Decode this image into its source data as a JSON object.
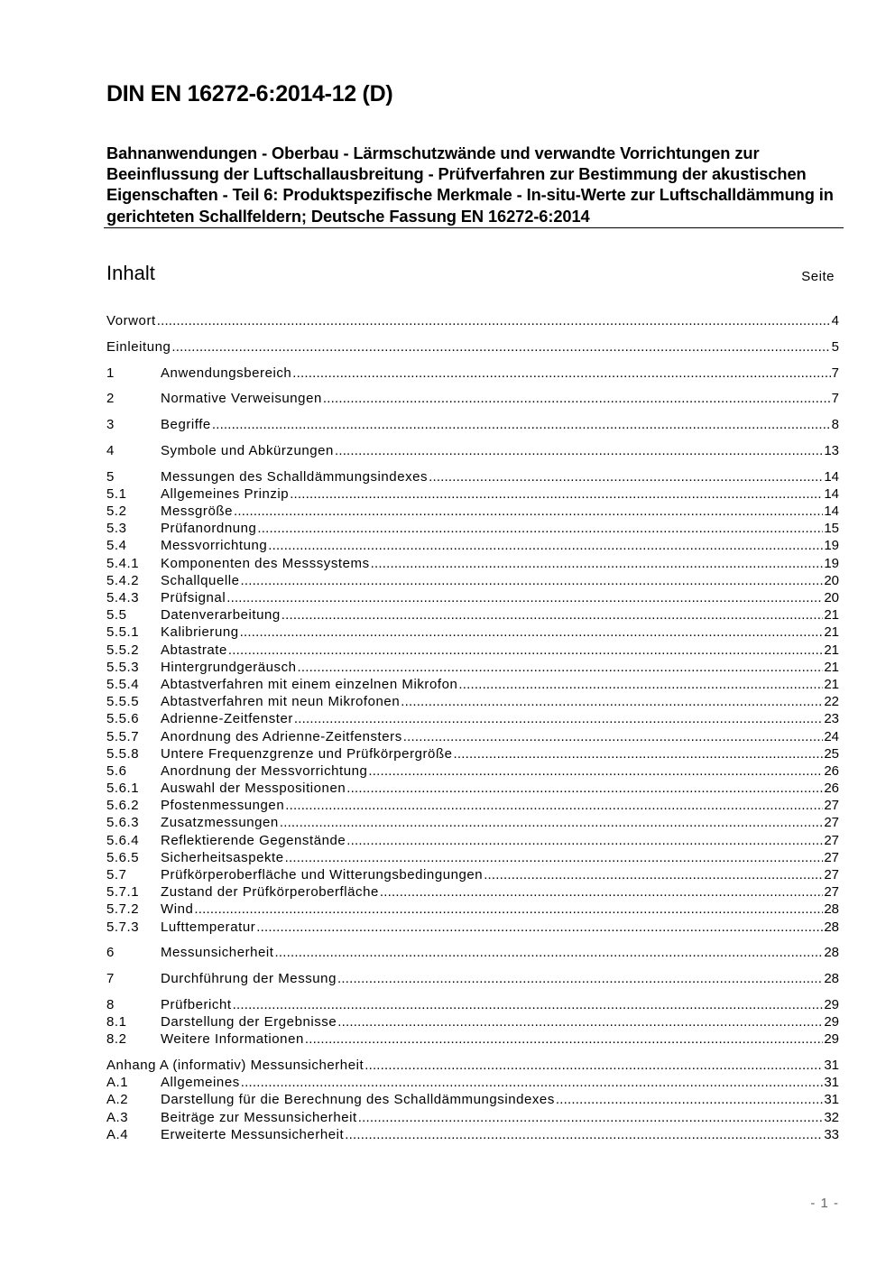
{
  "header": {
    "doc_id": "DIN EN 16272-6:2014-12 (D)",
    "subtitle": "Bahnanwendungen - Oberbau - Lärmschutzwände und verwandte Vorrichtungen zur Beeinflussung der Luftschallausbreitung - Prüfverfahren zur Bestimmung der akustischen Eigenschaften - Teil 6: Produktspezifische Merkmale - In-situ-Werte zur Luftschalldämmung in gerichteten Schallfeldern; Deutsche Fassung EN 16272-6:2014"
  },
  "toc": {
    "heading": "Inhalt",
    "page_label": "Seite",
    "groups": [
      [
        {
          "num": "",
          "title": "Vorwort",
          "page": "4"
        }
      ],
      [
        {
          "num": "",
          "title": "Einleitung",
          "page": "5"
        }
      ],
      [
        {
          "num": "1",
          "title": "Anwendungsbereich",
          "page": "7"
        }
      ],
      [
        {
          "num": "2",
          "title": "Normative Verweisungen",
          "page": "7"
        }
      ],
      [
        {
          "num": "3",
          "title": "Begriffe",
          "page": "8"
        }
      ],
      [
        {
          "num": "4",
          "title": "Symbole und Abkürzungen",
          "page": "13"
        }
      ],
      [
        {
          "num": "5",
          "title": "Messungen des Schalldämmungsindexes",
          "page": "14"
        },
        {
          "num": "5.1",
          "title": "Allgemeines Prinzip",
          "page": "14"
        },
        {
          "num": "5.2",
          "title": "Messgröße",
          "page": "14"
        },
        {
          "num": "5.3",
          "title": "Prüfanordnung",
          "page": "15"
        },
        {
          "num": "5.4",
          "title": "Messvorrichtung",
          "page": "19"
        },
        {
          "num": "5.4.1",
          "title": "Komponenten des Messsystems",
          "page": "19"
        },
        {
          "num": "5.4.2",
          "title": "Schallquelle",
          "page": "20"
        },
        {
          "num": "5.4.3",
          "title": "Prüfsignal",
          "page": "20"
        },
        {
          "num": "5.5",
          "title": "Datenverarbeitung",
          "page": "21"
        },
        {
          "num": "5.5.1",
          "title": "Kalibrierung",
          "page": "21"
        },
        {
          "num": "5.5.2",
          "title": "Abtastrate",
          "page": "21"
        },
        {
          "num": "5.5.3",
          "title": "Hintergrundgeräusch",
          "page": "21"
        },
        {
          "num": "5.5.4",
          "title": "Abtastverfahren mit einem einzelnen Mikrofon",
          "page": "21"
        },
        {
          "num": "5.5.5",
          "title": "Abtastverfahren mit neun Mikrofonen",
          "page": "22"
        },
        {
          "num": "5.5.6",
          "title": "Adrienne-Zeitfenster",
          "page": "23"
        },
        {
          "num": "5.5.7",
          "title": "Anordnung des Adrienne-Zeitfensters",
          "page": "24"
        },
        {
          "num": "5.5.8",
          "title": "Untere Frequenzgrenze und Prüfkörpergröße",
          "page": "25"
        },
        {
          "num": "5.6",
          "title": "Anordnung der Messvorrichtung",
          "page": "26"
        },
        {
          "num": "5.6.1",
          "title": "Auswahl der Messpositionen",
          "page": "26"
        },
        {
          "num": "5.6.2",
          "title": "Pfostenmessungen",
          "page": "27"
        },
        {
          "num": "5.6.3",
          "title": "Zusatzmessungen",
          "page": "27"
        },
        {
          "num": "5.6.4",
          "title": "Reflektierende Gegenstände",
          "page": "27"
        },
        {
          "num": "5.6.5",
          "title": "Sicherheitsaspekte",
          "page": "27"
        },
        {
          "num": "5.7",
          "title": "Prüfkörperoberfläche und Witterungsbedingungen",
          "page": "27"
        },
        {
          "num": "5.7.1",
          "title": "Zustand der Prüfkörperoberfläche",
          "page": "27"
        },
        {
          "num": "5.7.2",
          "title": "Wind",
          "page": "28"
        },
        {
          "num": "5.7.3",
          "title": "Lufttemperatur",
          "page": "28"
        }
      ],
      [
        {
          "num": "6",
          "title": "Messunsicherheit",
          "page": "28"
        }
      ],
      [
        {
          "num": "7",
          "title": "Durchführung der Messung",
          "page": "28"
        }
      ],
      [
        {
          "num": "8",
          "title": "Prüfbericht",
          "page": "29"
        },
        {
          "num": "8.1",
          "title": "Darstellung der Ergebnisse",
          "page": "29"
        },
        {
          "num": "8.2",
          "title": "Weitere Informationen",
          "page": "29"
        }
      ],
      [
        {
          "num": "",
          "title": "Anhang A (informativ)  Messunsicherheit",
          "page": "31"
        },
        {
          "num": "A.1",
          "title": "Allgemeines",
          "page": "31"
        },
        {
          "num": "A.2",
          "title": "Darstellung für die Berechnung des Schalldämmungsindexes",
          "page": "31"
        },
        {
          "num": "A.3",
          "title": "Beiträge zur Messunsicherheit",
          "page": "32"
        },
        {
          "num": "A.4",
          "title": "Erweiterte Messunsicherheit",
          "page": "33"
        }
      ]
    ]
  },
  "footer": {
    "page_number": "- 1 -"
  }
}
